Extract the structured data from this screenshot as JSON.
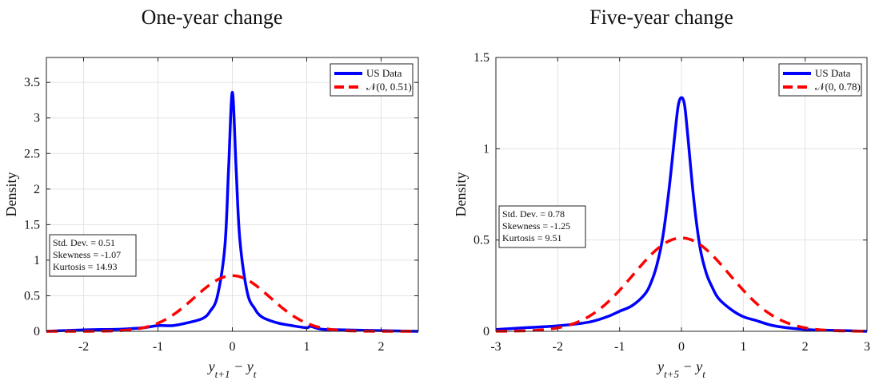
{
  "chart_data": [
    {
      "type": "line",
      "title": "One-year change",
      "xlabel": "y_{t+1} − y_t",
      "xlabel_main": "y",
      "xlabel_sub1": "t+1",
      "xlabel_mid": " − y",
      "xlabel_sub2": "t",
      "ylabel": "Density",
      "xlim": [
        -2.5,
        2.5
      ],
      "ylim": [
        0,
        3.85
      ],
      "xticks": [
        -2,
        -1,
        0,
        1,
        2
      ],
      "xtick_labels": [
        "-2",
        "-1",
        "0",
        "1",
        "2"
      ],
      "yticks": [
        0,
        0.5,
        1,
        1.5,
        2,
        2.5,
        3,
        3.5
      ],
      "ytick_labels": [
        "0",
        "0.5",
        "1",
        "1.5",
        "2",
        "2.5",
        "3",
        "3.5"
      ],
      "grid": true,
      "legend_position": "top-right",
      "series": [
        {
          "name": "US Data",
          "color": "#0000ff",
          "style": "solid",
          "x": [
            -2.5,
            -2.0,
            -1.5,
            -1.2,
            -1.0,
            -0.8,
            -0.6,
            -0.4,
            -0.3,
            -0.2,
            -0.1,
            -0.05,
            0.0,
            0.05,
            0.1,
            0.2,
            0.3,
            0.4,
            0.6,
            0.8,
            1.0,
            1.05,
            1.2,
            1.5,
            2.0,
            2.5
          ],
          "y": [
            0.0,
            0.02,
            0.03,
            0.05,
            0.08,
            0.08,
            0.12,
            0.18,
            0.28,
            0.5,
            1.2,
            2.3,
            3.36,
            2.3,
            1.3,
            0.55,
            0.32,
            0.2,
            0.12,
            0.08,
            0.05,
            0.07,
            0.03,
            0.02,
            0.01,
            0.0
          ]
        },
        {
          "name": "N(0,0.51)",
          "label_math": "𝒩(0, 0.51)",
          "color": "#ff0000",
          "style": "dashed",
          "normal": {
            "mu": 0,
            "sigma": 0.51
          }
        }
      ],
      "stats": {
        "lines": [
          "Std. Dev. = 0.51",
          "Skewness = -1.07",
          "Kurtosis = 14.93"
        ]
      }
    },
    {
      "type": "line",
      "title": "Five-year change",
      "xlabel": "y_{t+5} − y_t",
      "xlabel_main": "y",
      "xlabel_sub1": "t+5",
      "xlabel_mid": " − y",
      "xlabel_sub2": "t",
      "ylabel": "Density",
      "xlim": [
        -3,
        3
      ],
      "ylim": [
        0,
        1.5
      ],
      "xticks": [
        -3,
        -2,
        -1,
        0,
        1,
        2,
        3
      ],
      "xtick_labels": [
        "-3",
        "-2",
        "-1",
        "0",
        "1",
        "2",
        "3"
      ],
      "yticks": [
        0,
        0.5,
        1,
        1.5
      ],
      "ytick_labels": [
        "0",
        "0.5",
        "1",
        "1.5"
      ],
      "grid": true,
      "legend_position": "top-right",
      "series": [
        {
          "name": "US Data",
          "color": "#0000ff",
          "style": "solid",
          "x": [
            -3.0,
            -2.5,
            -2.0,
            -1.5,
            -1.2,
            -1.0,
            -0.8,
            -0.6,
            -0.5,
            -0.4,
            -0.3,
            -0.2,
            -0.1,
            -0.05,
            0.0,
            0.05,
            0.1,
            0.2,
            0.3,
            0.4,
            0.5,
            0.6,
            0.8,
            1.0,
            1.2,
            1.5,
            2.0,
            2.5,
            3.0
          ],
          "y": [
            0.01,
            0.02,
            0.03,
            0.05,
            0.08,
            0.11,
            0.14,
            0.2,
            0.26,
            0.36,
            0.52,
            0.78,
            1.1,
            1.24,
            1.28,
            1.24,
            1.08,
            0.72,
            0.46,
            0.32,
            0.24,
            0.18,
            0.12,
            0.08,
            0.06,
            0.03,
            0.01,
            0.005,
            0.0
          ]
        },
        {
          "name": "N(0,0.78)",
          "label_math": "𝒩(0, 0.78)",
          "color": "#ff0000",
          "style": "dashed",
          "normal": {
            "mu": 0,
            "sigma": 0.78
          }
        }
      ],
      "stats": {
        "lines": [
          "Std. Dev. = 0.78",
          "Skewness = -1.25",
          "Kurtosis = 9.51"
        ]
      }
    }
  ]
}
